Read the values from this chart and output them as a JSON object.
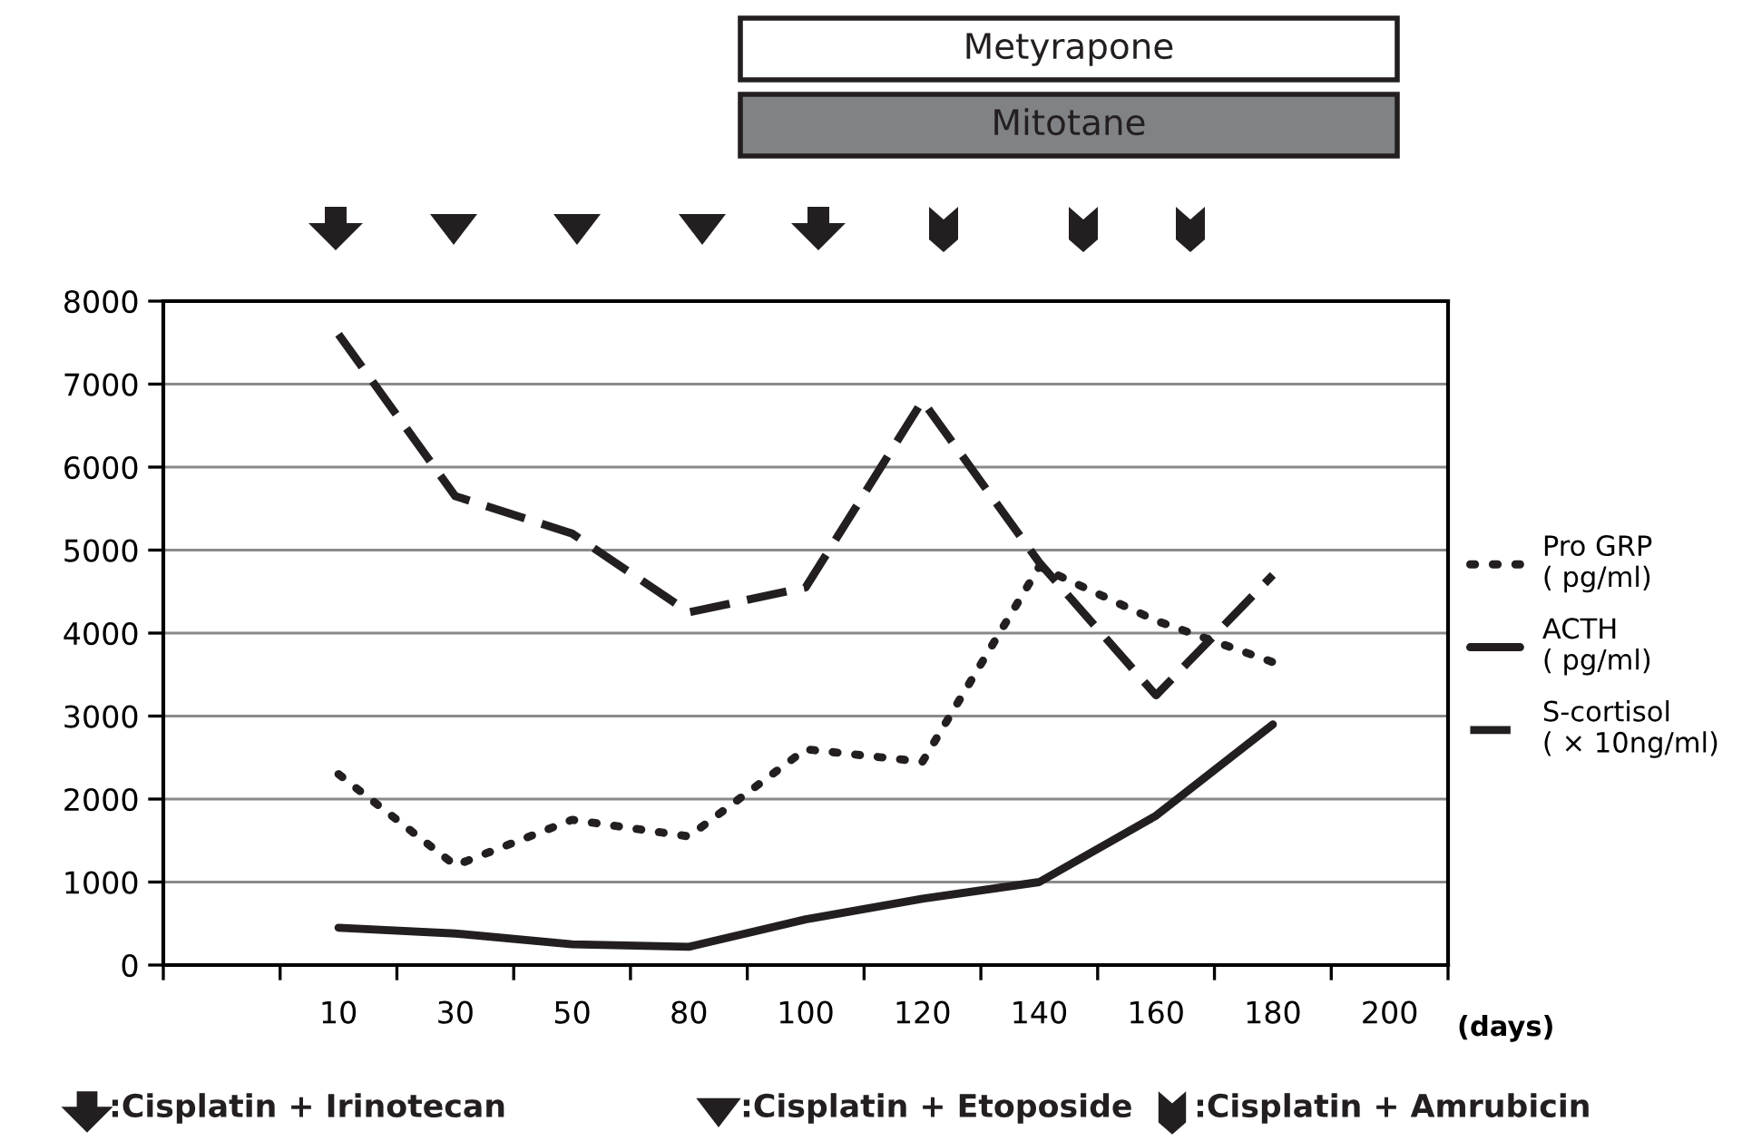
{
  "chart_data": {
    "type": "line",
    "xlabel": "(days)",
    "categories": [
      null,
      "10",
      "30",
      "50",
      "80",
      "100",
      "120",
      "140",
      "160",
      "180",
      "200"
    ],
    "series": [
      {
        "name": "Pro GRP\n( pg/ml)",
        "color": "#231f20",
        "line_style": "dotted",
        "values": [
          null,
          2300,
          1200,
          1750,
          1550,
          2600,
          2450,
          4800,
          4150,
          3650,
          null
        ]
      },
      {
        "name": "ACTH\n( pg/ml)",
        "color": "#231f20",
        "line_style": "solid",
        "values": [
          null,
          450,
          380,
          250,
          220,
          550,
          800,
          1000,
          1800,
          2900,
          null
        ]
      },
      {
        "name": "S-cortisol\n( × 10ng/ml)",
        "color": "#231f20",
        "line_style": "dashed",
        "values": [
          null,
          7600,
          5650,
          5200,
          4250,
          4550,
          6800,
          4850,
          3250,
          4700,
          null
        ]
      }
    ],
    "ylim": [
      0,
      8000
    ],
    "yticks": [
      0,
      1000,
      2000,
      3000,
      4000,
      5000,
      6000,
      7000,
      8000
    ],
    "grid": "y",
    "legend": "right",
    "marker": "none",
    "annotations": [
      "Metyrapone",
      "Mitotane",
      ":Cisplatin + Irinotecan",
      ":Cisplatin + Etoposide",
      ":Cisplatin + Amrubicin"
    ]
  }
}
